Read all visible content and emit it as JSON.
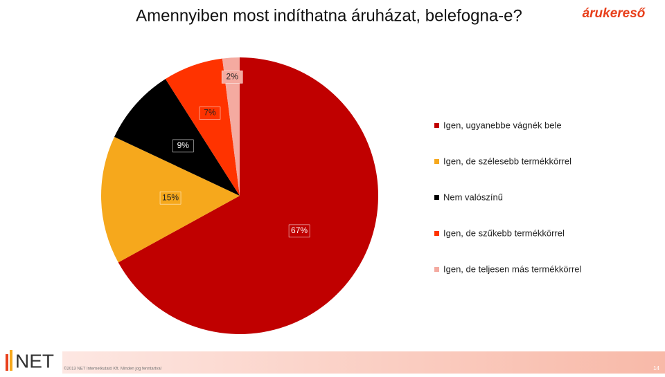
{
  "chart_data": {
    "type": "pie",
    "title": "Amennyiben most indíthatna áruházat, belefogna-e?",
    "categories": [
      "Igen, ugyanebbe vágnék bele",
      "Igen, de szélesebb termékkörrel",
      "Nem valószínű",
      "Igen, de szűkebb termékkörrel",
      "Igen, de teljesen más termékkörrel"
    ],
    "values": [
      67,
      15,
      9,
      7,
      2
    ],
    "value_labels": [
      "67%",
      "15%",
      "9%",
      "7%",
      "2%"
    ],
    "colors": [
      "#c00000",
      "#f6a81c",
      "#000000",
      "#ff3300",
      "#f4aaa0"
    ],
    "legend": "right"
  },
  "branding": {
    "logo": "árukereső",
    "company": "NET",
    "footer": "©2013 NET Internetkutató Kft. Minden jog fenntartva!",
    "page": "14"
  }
}
